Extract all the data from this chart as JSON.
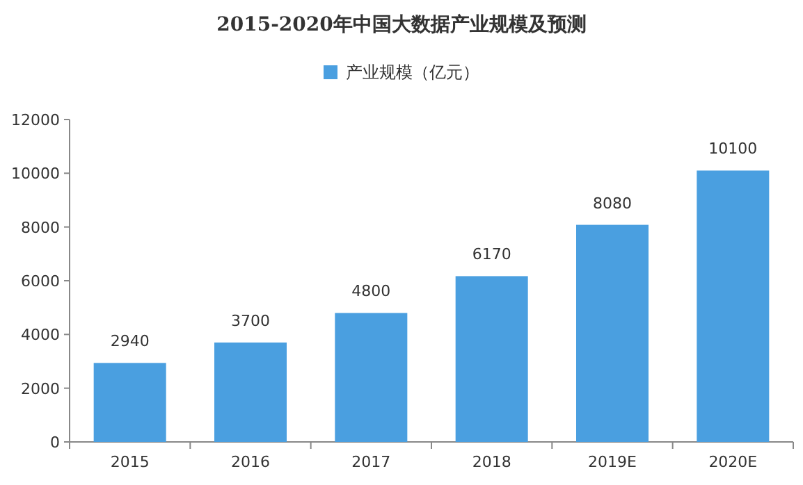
{
  "chart_data": {
    "type": "bar",
    "title": "2015-2020年中国大数据产业规模及预测",
    "categories": [
      "2015",
      "2016",
      "2017",
      "2018",
      "2019E",
      "2020E"
    ],
    "series": [
      {
        "name": "产业规模（亿元）",
        "color": "#4a9fe0",
        "values": [
          2940,
          3700,
          4800,
          6170,
          8080,
          10100
        ]
      }
    ],
    "ylim": [
      0,
      12000
    ],
    "yticks": [
      0,
      2000,
      4000,
      6000,
      8000,
      10000,
      12000
    ],
    "data_labels": true,
    "legend": "top",
    "grid": false
  }
}
